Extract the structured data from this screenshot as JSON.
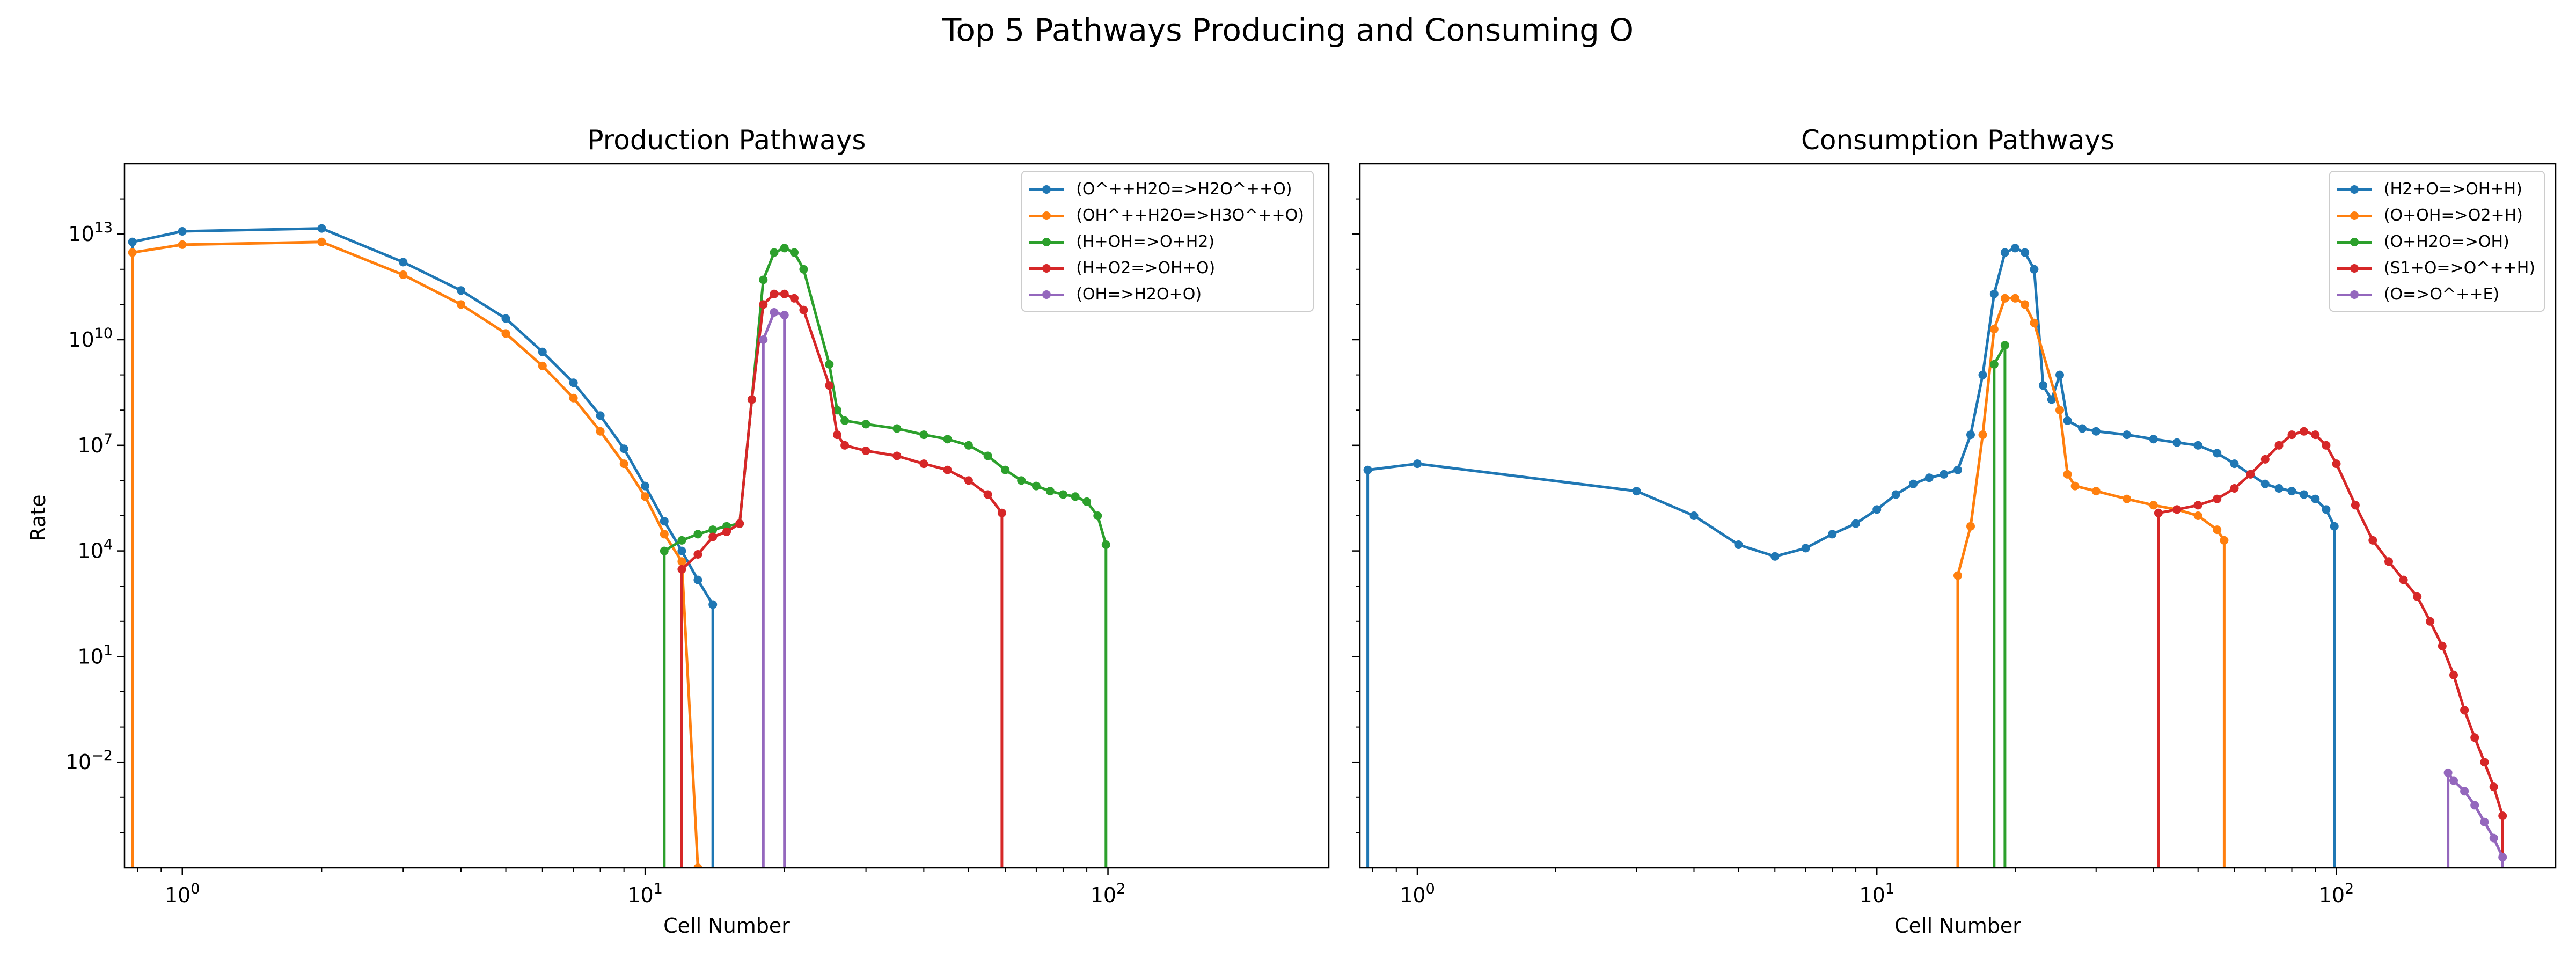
{
  "title": "Top 5 Pathways Producing and Consuming O",
  "chart_data": [
    {
      "type": "line",
      "title": "Production Pathways",
      "xlabel": "Cell Number",
      "ylabel": "Rate",
      "xscale": "log",
      "yscale": "log",
      "xlim": [
        0.75,
        300
      ],
      "ylim": [
        1e-05,
        1000000000000000.0
      ],
      "x_ticks": [
        "10^0",
        "10^1",
        "10^2"
      ],
      "y_ticks": [
        "10^13",
        "10^10",
        "10^7",
        "10^4",
        "10^1",
        "10^-2"
      ],
      "legend_position": "top-right",
      "series": [
        {
          "name": "(O^++H2O=>H2O^++O)",
          "color": "#1f77b4",
          "x": [
            0,
            1,
            2,
            3,
            4,
            5,
            6,
            7,
            8,
            9,
            10,
            11,
            12,
            13,
            14
          ],
          "y": [
            6000000000000.0,
            12000000000000.0,
            14500000000000.0,
            1600000000000.0,
            250000000000.0,
            40000000000.0,
            4500000000.0,
            600000000.0,
            70000000.0,
            8000000.0,
            700000.0,
            70000.0,
            10000.0,
            1500.0,
            300.0
          ]
        },
        {
          "name": "(OH^++H2O=>H3O^++O)",
          "color": "#ff7f0e",
          "x": [
            0,
            1,
            2,
            3,
            4,
            5,
            6,
            7,
            8,
            9,
            10,
            11,
            12,
            13
          ],
          "y": [
            3000000000000.0,
            5000000000000.0,
            6000000000000.0,
            700000000000.0,
            100000000000.0,
            15000000000.0,
            1800000000.0,
            220000000.0,
            25000000.0,
            3000000.0,
            350000.0,
            30000.0,
            5000.0,
            1e-05
          ]
        },
        {
          "name": "(H+OH=>O+H2)",
          "color": "#2ca02c",
          "x": [
            11,
            12,
            13,
            14,
            15,
            16,
            17,
            18,
            19,
            20,
            21,
            22,
            25,
            26,
            27,
            30,
            35,
            40,
            45,
            50,
            55,
            60,
            65,
            70,
            75,
            80,
            85,
            90,
            95,
            99
          ],
          "y": [
            10000.0,
            20000.0,
            30000.0,
            40000.0,
            50000.0,
            60000.0,
            200000000.0,
            500000000000.0,
            3000000000000.0,
            4000000000000.0,
            3000000000000.0,
            1000000000000.0,
            2000000000.0,
            100000000.0,
            50000000.0,
            40000000.0,
            30000000.0,
            20000000.0,
            15000000.0,
            10000000.0,
            5000000.0,
            2000000.0,
            1000000.0,
            700000.0,
            500000.0,
            400000.0,
            350000.0,
            250000.0,
            100000.0,
            15000.0
          ]
        },
        {
          "name": "(H+O2=>OH+O)",
          "color": "#d62728",
          "x": [
            12,
            13,
            14,
            15,
            16,
            17,
            18,
            19,
            20,
            21,
            22,
            25,
            26,
            27,
            30,
            35,
            40,
            45,
            50,
            55,
            59
          ],
          "y": [
            3000.0,
            8000.0,
            25000.0,
            35000.0,
            60000.0,
            200000000.0,
            100000000000.0,
            200000000000.0,
            200000000000.0,
            150000000000.0,
            70000000000.0,
            500000000.0,
            20000000.0,
            10000000.0,
            7000000.0,
            5000000.0,
            3000000.0,
            2000000.0,
            1000000.0,
            400000.0,
            120000.0
          ]
        },
        {
          "name": "(OH=>H2O+O)",
          "color": "#9467bd",
          "x": [
            18,
            19,
            20
          ],
          "y": [
            10000000000.0,
            60000000000.0,
            50000000000.0
          ]
        }
      ]
    },
    {
      "type": "line",
      "title": "Consumption Pathways",
      "xlabel": "Cell Number",
      "xscale": "log",
      "yscale": "log",
      "xlim": [
        0.75,
        300
      ],
      "ylim": [
        1e-05,
        1000000000000000.0
      ],
      "x_ticks": [
        "10^0",
        "10^1",
        "10^2"
      ],
      "legend_position": "top-right",
      "series": [
        {
          "name": "(H2+O=>OH+H)",
          "color": "#1f77b4",
          "x": [
            0,
            1,
            3,
            4,
            5,
            6,
            7,
            8,
            9,
            10,
            11,
            12,
            13,
            14,
            15,
            16,
            17,
            18,
            19,
            20,
            21,
            22,
            23,
            24,
            25,
            26,
            28,
            30,
            35,
            40,
            45,
            50,
            55,
            60,
            65,
            70,
            75,
            80,
            85,
            90,
            95,
            99
          ],
          "y": [
            2000000.0,
            3000000.0,
            500000.0,
            100000.0,
            15000.0,
            7000.0,
            12000.0,
            30000.0,
            60000.0,
            150000.0,
            400000.0,
            800000.0,
            1200000.0,
            1500000.0,
            2000000.0,
            20000000.0,
            1000000000.0,
            200000000000.0,
            3000000000000.0,
            4000000000000.0,
            3000000000000.0,
            1000000000000.0,
            500000000.0,
            200000000.0,
            1000000000.0,
            50000000.0,
            30000000.0,
            25000000.0,
            20000000.0,
            15000000.0,
            12000000.0,
            10000000.0,
            6000000.0,
            3000000.0,
            1500000.0,
            800000.0,
            600000.0,
            500000.0,
            400000.0,
            300000.0,
            150000.0,
            50000.0
          ]
        },
        {
          "name": "(O+OH=>O2+H)",
          "color": "#ff7f0e",
          "x": [
            15,
            16,
            17,
            18,
            19,
            20,
            21,
            22,
            25,
            26,
            27,
            30,
            35,
            40,
            45,
            50,
            55,
            57
          ],
          "y": [
            2000.0,
            50000.0,
            20000000.0,
            20000000000.0,
            150000000000.0,
            150000000000.0,
            100000000000.0,
            30000000000.0,
            100000000.0,
            1500000.0,
            700000.0,
            500000.0,
            300000.0,
            200000.0,
            150000.0,
            100000.0,
            40000.0,
            20000.0
          ]
        },
        {
          "name": "(O+H2O=>OH)",
          "color": "#2ca02c",
          "x": [
            18,
            19
          ],
          "y": [
            2000000000.0,
            7000000000.0
          ]
        },
        {
          "name": "(S1+O=>O^++H)",
          "color": "#d62728",
          "x": [
            41,
            45,
            50,
            55,
            60,
            65,
            70,
            75,
            80,
            85,
            90,
            95,
            100,
            110,
            120,
            130,
            140,
            150,
            160,
            170,
            180,
            190,
            200,
            210,
            220,
            230
          ],
          "y": [
            120000.0,
            150000.0,
            200000.0,
            300000.0,
            600000.0,
            1500000.0,
            4000000.0,
            10000000.0,
            20000000.0,
            25000000.0,
            20000000.0,
            10000000.0,
            3000000.0,
            200000.0,
            20000.0,
            5000.0,
            1500.0,
            500.0,
            100.0,
            20,
            3,
            0.3,
            0.05,
            0.01,
            0.002,
            0.0003
          ]
        },
        {
          "name": "(O=>O^++E)",
          "color": "#9467bd",
          "x": [
            175,
            180,
            190,
            200,
            210,
            220,
            230
          ],
          "y": [
            0.005,
            0.003,
            0.0015,
            0.0006,
            0.0002,
            7e-05,
            2e-05
          ]
        }
      ]
    }
  ]
}
